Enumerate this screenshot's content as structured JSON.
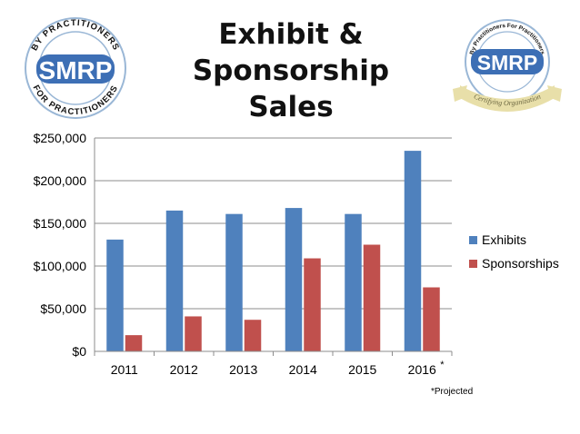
{
  "header": {
    "title_line1": "Exhibit & Sponsorship",
    "title_line2": "Sales"
  },
  "logos": {
    "left": {
      "brand": "SMRP",
      "ring_top": "BY PRACTITIONERS",
      "ring_bottom": "FOR PRACTITIONERS"
    },
    "right": {
      "brand": "SMRP",
      "ring_top": "By Practitioners For Practitioners",
      "ribbon": "Certifying Organization"
    }
  },
  "colors": {
    "exhibits": "#4F81BD",
    "sponsorships": "#C0504D",
    "logo_blue": "#3d6fb5",
    "logo_ring": "#9ab7d6",
    "ribbon": "#e8dfa9"
  },
  "chart_data": {
    "type": "bar",
    "title": "",
    "xlabel": "",
    "ylabel": "",
    "categories": [
      "2011",
      "2012",
      "2013",
      "2014",
      "2015",
      "2016"
    ],
    "category_markers": [
      "",
      "",
      "",
      "",
      "",
      "*"
    ],
    "series": [
      {
        "name": "Exhibits",
        "values": [
          131000,
          165000,
          161000,
          168000,
          161000,
          235000
        ]
      },
      {
        "name": "Sponsorships",
        "values": [
          19000,
          41000,
          37000,
          109000,
          125000,
          75000
        ]
      }
    ],
    "ylim": [
      0,
      250000
    ],
    "yticks": [
      0,
      50000,
      100000,
      150000,
      200000,
      250000
    ],
    "ytick_labels": [
      "$0",
      "$50,000",
      "$100,000",
      "$150,000",
      "$200,000",
      "$250,000"
    ],
    "grid": true,
    "legend_position": "right"
  },
  "footnote": "*Projected"
}
